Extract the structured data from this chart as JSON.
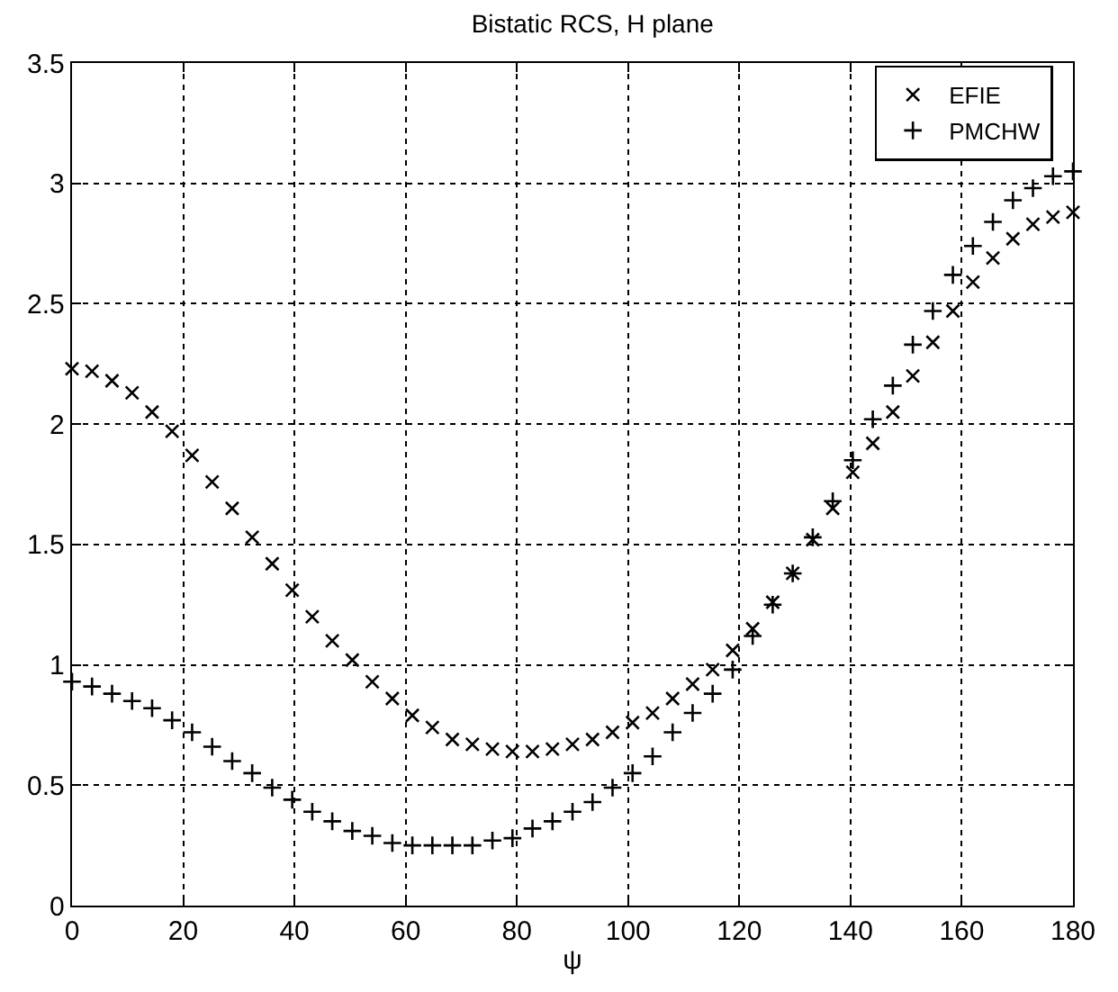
{
  "chart_data": {
    "type": "scatter",
    "title": "Bistatic RCS, H plane",
    "xlabel": "ψ",
    "x": [
      0,
      3.6,
      7.2,
      10.8,
      14.4,
      18,
      21.6,
      25.2,
      28.8,
      32.4,
      36,
      39.6,
      43.2,
      46.8,
      50.4,
      54,
      57.6,
      61.2,
      64.8,
      68.4,
      72,
      75.6,
      79.2,
      82.8,
      86.4,
      90,
      93.6,
      97.2,
      100.8,
      104.4,
      108,
      111.6,
      115.2,
      118.8,
      122.4,
      126,
      129.6,
      133.2,
      136.8,
      140.4,
      144,
      147.6,
      151.2,
      154.8,
      158.4,
      162,
      165.6,
      169.2,
      172.8,
      176.4,
      180
    ],
    "series": [
      {
        "name": "EFIE",
        "color": "#000000",
        "marker": "x",
        "values": [
          2.23,
          2.22,
          2.18,
          2.13,
          2.05,
          1.97,
          1.87,
          1.76,
          1.65,
          1.53,
          1.42,
          1.31,
          1.2,
          1.1,
          1.02,
          0.93,
          0.86,
          0.79,
          0.74,
          0.69,
          0.67,
          0.65,
          0.64,
          0.64,
          0.65,
          0.67,
          0.69,
          0.72,
          0.76,
          0.8,
          0.86,
          0.92,
          0.98,
          1.06,
          1.15,
          1.26,
          1.38,
          1.52,
          1.65,
          1.8,
          1.92,
          2.05,
          2.2,
          2.34,
          2.47,
          2.59,
          2.69,
          2.77,
          2.83,
          2.86,
          2.88
        ]
      },
      {
        "name": "PMCHW",
        "color": "#000000",
        "marker": "cross",
        "values": [
          0.93,
          0.91,
          0.88,
          0.85,
          0.82,
          0.77,
          0.72,
          0.66,
          0.6,
          0.55,
          0.49,
          0.44,
          0.39,
          0.35,
          0.31,
          0.29,
          0.26,
          0.25,
          0.25,
          0.25,
          0.25,
          0.27,
          0.28,
          0.32,
          0.35,
          0.39,
          0.43,
          0.49,
          0.55,
          0.62,
          0.72,
          0.8,
          0.88,
          0.98,
          1.12,
          1.25,
          1.38,
          1.53,
          1.68,
          1.85,
          2.02,
          2.16,
          2.33,
          2.47,
          2.62,
          2.74,
          2.84,
          2.93,
          2.98,
          3.03,
          3.05
        ]
      }
    ],
    "xlim": [
      0,
      180
    ],
    "xticks": [
      0,
      20,
      40,
      60,
      80,
      100,
      120,
      140,
      160,
      180
    ],
    "ylim": [
      0,
      3.5
    ],
    "yticks": [
      0,
      0.5,
      1,
      1.5,
      2,
      2.5,
      3,
      3.5
    ],
    "grid": true,
    "legend": "top right"
  }
}
